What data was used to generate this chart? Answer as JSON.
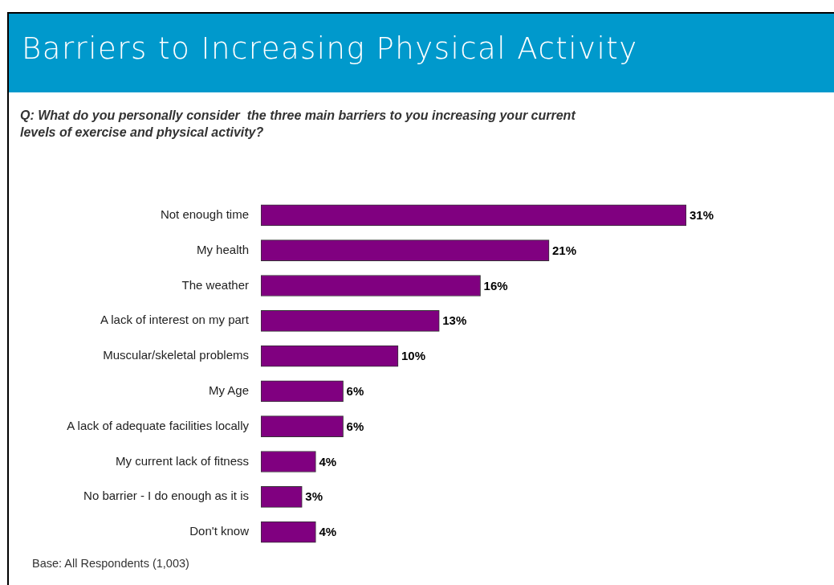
{
  "chart_data": {
    "type": "bar",
    "orientation": "horizontal",
    "title": "Barriers to Increasing Physical Activity",
    "subtitle": "Q: What do you personally consider  the three main barriers to you increasing your current levels of exercise and physical activity?",
    "categories": [
      "Not enough time",
      "My health",
      "The weather",
      "A lack of interest on my part",
      "Muscular/skeletal problems",
      "My Age",
      "A lack of adequate facilities locally",
      "My current lack of fitness",
      "No barrier - I do enough as it is",
      "Don't know"
    ],
    "values": [
      31,
      21,
      16,
      13,
      10,
      6,
      6,
      4,
      3,
      4
    ],
    "value_labels": [
      "31%",
      "21%",
      "16%",
      "13%",
      "10%",
      "6%",
      "6%",
      "4%",
      "3%",
      "4%"
    ],
    "color": "#800080",
    "legend": false,
    "annotations": [
      "Base: All Respondents (1,003)"
    ]
  }
}
